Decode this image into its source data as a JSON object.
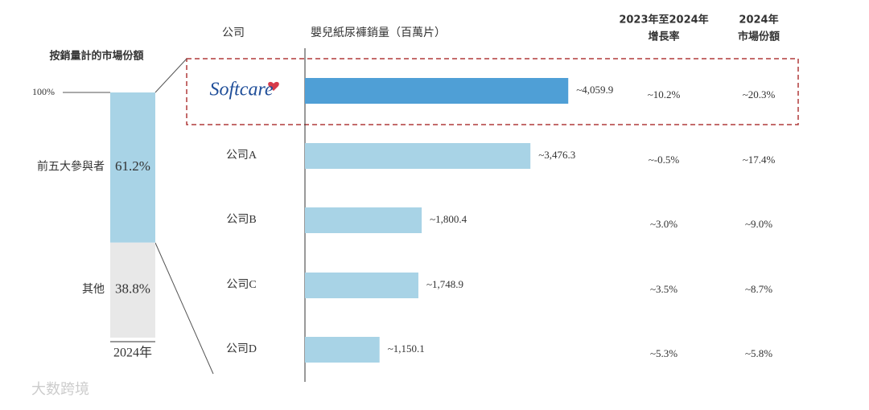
{
  "chart_data": [
    {
      "type": "stacked-bar",
      "title": "按銷量計的市場份額",
      "categories": [
        "2024年"
      ],
      "series": [
        {
          "name": "其他",
          "color": "#e8e8e8",
          "values": [
            38.8
          ],
          "value_labels": [
            "38.8%"
          ]
        },
        {
          "name": "前五大參與者",
          "color": "#a8d3e6",
          "values": [
            61.2
          ],
          "value_labels": [
            "61.2%"
          ]
        }
      ],
      "ylim": [
        0,
        100
      ],
      "yticks": [
        {
          "value": 100,
          "label": "100%"
        }
      ]
    },
    {
      "type": "hbar",
      "category_header": "公司",
      "title": "嬰兒紙尿褲銷量（百萬片）",
      "categories": [
        "Softcare",
        "公司A",
        "公司B",
        "公司C",
        "公司D"
      ],
      "values": [
        4059.9,
        3476.3,
        1800.4,
        1748.9,
        1150.1
      ],
      "value_labels": [
        "~4,059.9",
        "~3,476.3",
        "~1,800.4",
        "~1,748.9",
        "~1,150.1"
      ],
      "colors": [
        "#4f9fd6",
        "#a8d3e6",
        "#a8d3e6",
        "#a8d3e6",
        "#a8d3e6"
      ],
      "xlim": [
        0,
        5000
      ],
      "table_columns": [
        {
          "header": [
            "2023年至2024年",
            "增長率"
          ],
          "cells": [
            "~10.2%",
            "~-0.5%",
            "~3.0%",
            "~3.5%",
            "~5.3%"
          ]
        },
        {
          "header": [
            "2024年",
            "市場份額"
          ],
          "cells": [
            "~20.3%",
            "~17.4%",
            "~9.0%",
            "~8.7%",
            "~5.8%"
          ]
        }
      ]
    }
  ],
  "watermark": "大数跨境"
}
